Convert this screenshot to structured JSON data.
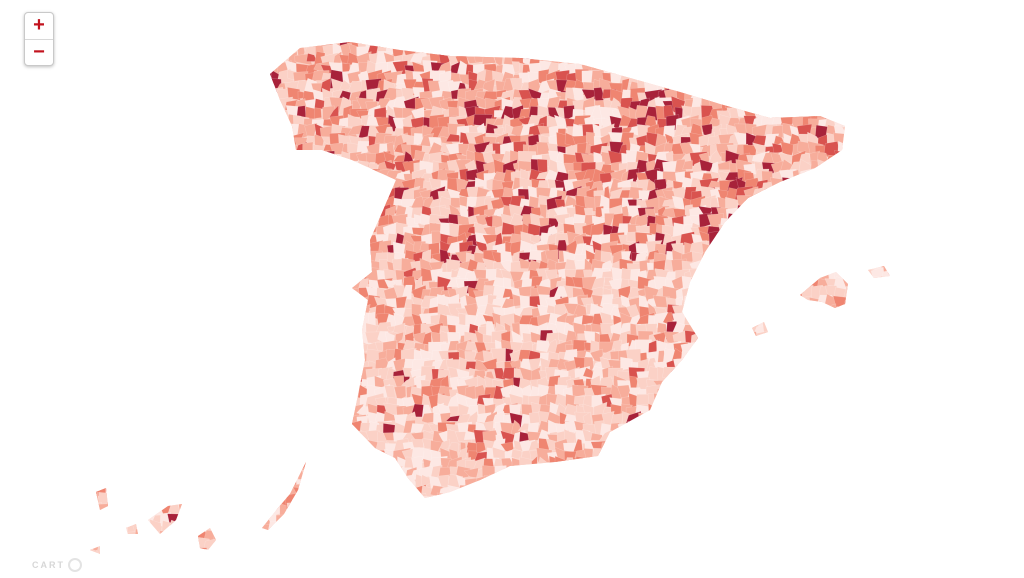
{
  "map": {
    "palette": [
      "#fde8e4",
      "#fbd1c6",
      "#f7ad9b",
      "#ef8571",
      "#d9534f",
      "#a8223a"
    ],
    "background": "#ffffff"
  },
  "controls": {
    "zoom_in_label": "+",
    "zoom_out_label": "−"
  },
  "attribution": {
    "text": "CART",
    "icon": "carto-logo-icon"
  }
}
